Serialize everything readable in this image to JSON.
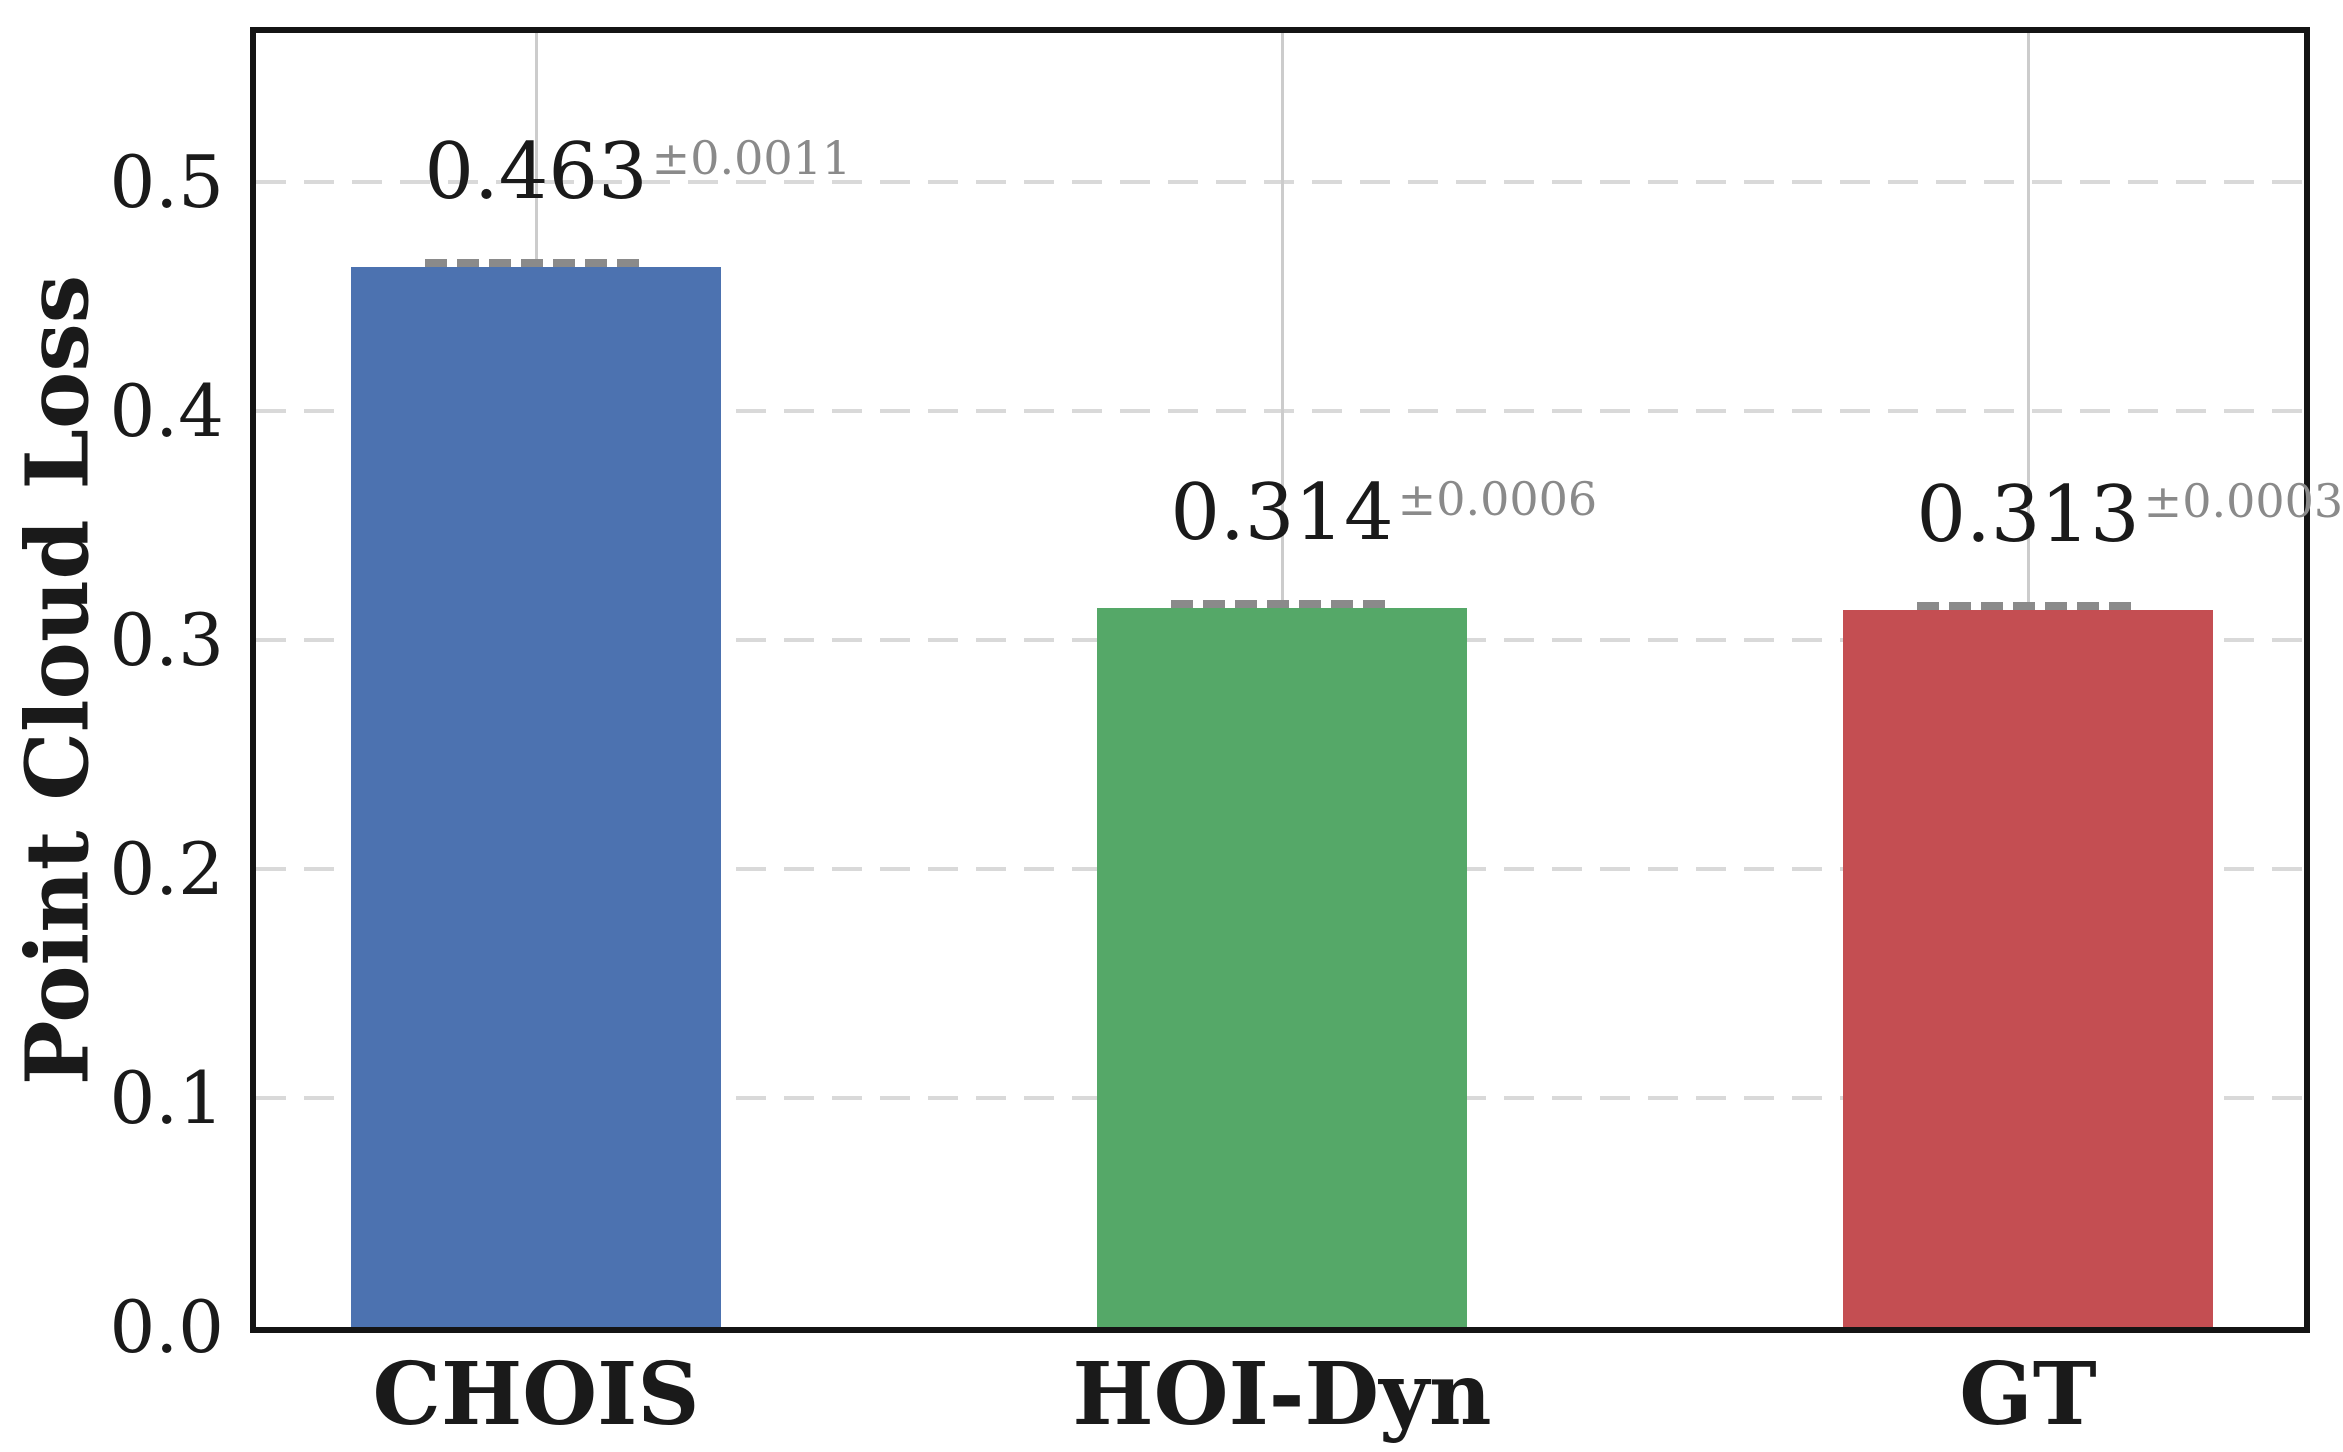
{
  "chart_data": {
    "type": "bar",
    "title": "",
    "categories": [
      "CHOIS",
      "HOI-Dyn",
      "GT"
    ],
    "values": [
      0.463,
      0.314,
      0.313
    ],
    "value_labels": [
      "0.463",
      "0.314",
      "0.313"
    ],
    "error_labels": [
      "±0.0011",
      "±0.0006",
      "±0.0003"
    ],
    "error_values": [
      0.0011,
      0.0006,
      0.0003
    ],
    "bar_colors": [
      "#4C72B0",
      "#55A868",
      "#C44E52"
    ],
    "xlabel": "",
    "ylabel": "Point Cloud Loss",
    "yticks": [
      0.0,
      0.1,
      0.2,
      0.3,
      0.4,
      0.5
    ],
    "ytick_labels": [
      "0.0",
      "0.1",
      "0.2",
      "0.3",
      "0.4",
      "0.5"
    ],
    "ylim": [
      0,
      0.565
    ],
    "grid": "dashed horizontal gridlines at y ticks; solid light vertical guide at each bar center",
    "legend": "none",
    "error_cap_style": "dashed gray horizontal cap at bar top",
    "colors": {
      "axis_spine": "#141414",
      "hgrid": "#d9d9d9",
      "vguide": "#cccccc",
      "error_cap": "#8a8a8a",
      "value_text": "#1a1a1a",
      "error_text": "#8a8a8a",
      "tick_text": "#1a1a1a"
    }
  }
}
